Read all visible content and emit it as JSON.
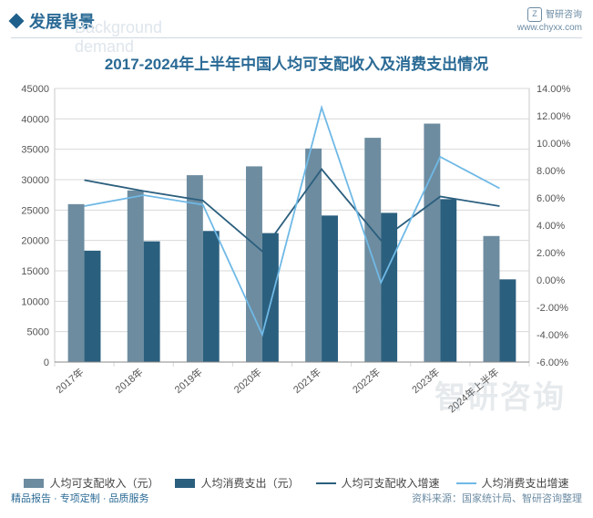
{
  "header": {
    "section_title": "发展背景",
    "ghost_text": "Background demand",
    "brand_name": "智研咨询",
    "brand_url": "www.chyxx.com"
  },
  "chart": {
    "title": "2017-2024年上半年中国人均可支配收入及消费支出情况",
    "type": "bar+line-dual-axis",
    "categories": [
      "2017年",
      "2018年",
      "2019年",
      "2020年",
      "2021年",
      "2022年",
      "2023年",
      "2024年上半年"
    ],
    "series_bar1": {
      "name": "人均可支配收入（元）",
      "color": "#6d8ca0",
      "values": [
        25974,
        28228,
        30733,
        32189,
        35128,
        36883,
        39218,
        20733
      ]
    },
    "series_bar2": {
      "name": "人均消费支出（元）",
      "color": "#2b5f7e",
      "values": [
        18322,
        19853,
        21559,
        21210,
        24100,
        24538,
        26796,
        13601
      ]
    },
    "series_line1": {
      "name": "人均可支配收入增速",
      "color": "#2b5f7e",
      "values": [
        7.3,
        6.5,
        5.8,
        2.1,
        8.1,
        2.9,
        6.1,
        5.4
      ]
    },
    "series_line2": {
      "name": "人均消费支出增速",
      "color": "#6fb9e6",
      "values": [
        5.4,
        6.2,
        5.5,
        -4.0,
        12.6,
        -0.2,
        9.0,
        6.7
      ]
    },
    "left_axis": {
      "min": 0,
      "max": 45000,
      "step": 5000
    },
    "right_axis": {
      "min": -6,
      "max": 14,
      "step": 2,
      "suffix": "%",
      "decimals": 2
    },
    "background_color": "#ffffff",
    "grid_color": "#d9d9d9",
    "inner_border_color": "#c9c9c9",
    "axis_font_size": 11,
    "bar_group_width": 0.55,
    "line_width": 1.8
  },
  "legend": {
    "items": [
      {
        "label": "人均可支配收入（元）",
        "type": "bar",
        "color": "#6d8ca0"
      },
      {
        "label": "人均消费支出（元）",
        "type": "bar",
        "color": "#2b5f7e"
      },
      {
        "label": "人均可支配收入增速",
        "type": "line",
        "color": "#2b5f7e"
      },
      {
        "label": "人均消费支出增速",
        "type": "line",
        "color": "#6fb9e6"
      }
    ]
  },
  "footer": {
    "left": "精品报告 · 专项定制 · 品质服务",
    "source": "资料来源：国家统计局、智研咨询整理"
  },
  "watermark": "智研咨询"
}
